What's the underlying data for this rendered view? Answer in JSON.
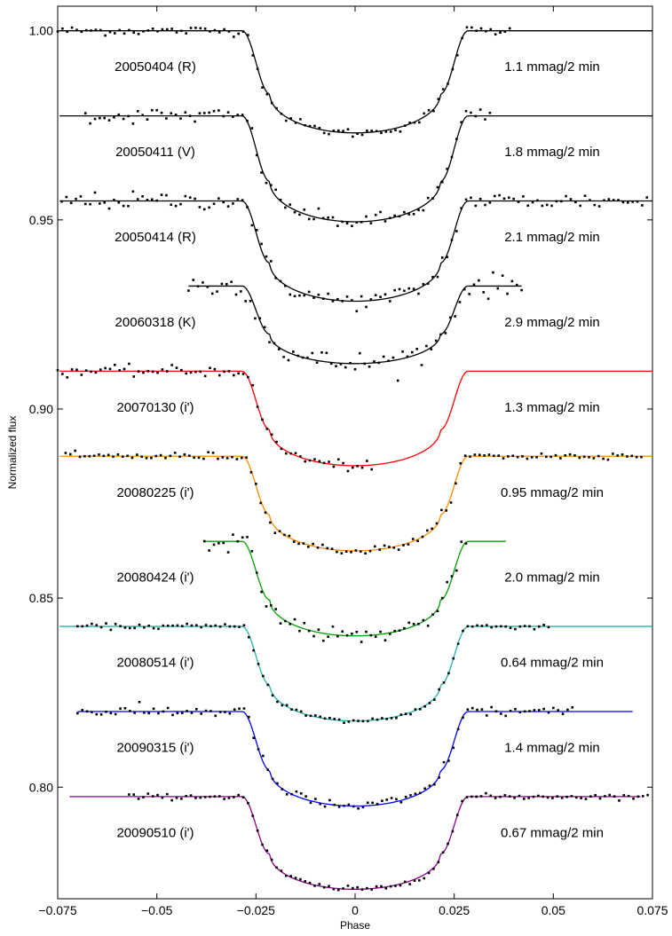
{
  "chart_data": {
    "type": "scatter",
    "title": "",
    "xlabel": "Phase",
    "ylabel": "Normalized flux",
    "xlim": [
      -0.075,
      0.075
    ],
    "ylim": [
      0.7705,
      1.0065
    ],
    "xticks": [
      -0.075,
      -0.05,
      -0.025,
      0,
      0.025,
      0.05,
      0.075
    ],
    "xtick_labels": [
      "−0.075",
      "−0.05",
      "−0.025",
      "0",
      "0.025",
      "0.05",
      "0.075"
    ],
    "yticks": [
      0.8,
      0.85,
      0.9,
      0.95,
      1.0
    ],
    "ytick_labels": [
      "0.80",
      "0.85",
      "0.90",
      "0.95",
      "1.00"
    ],
    "grid": false,
    "legend": "none",
    "series": [
      {
        "name": "20050404 (R)",
        "rms": "1.1 mmag/2 min",
        "baseline": 1.0,
        "depth": 0.027,
        "color": "#000000",
        "xmin": -0.0745,
        "xmax": 0.075,
        "data_xmin": -0.075,
        "data_xmax": 0.039
      },
      {
        "name": "20050411 (V)",
        "rms": "1.8 mmag/2 min",
        "baseline": 0.9775,
        "depth": 0.028,
        "color": "#000000",
        "xmin": -0.0745,
        "xmax": 0.075,
        "data_xmin": -0.068,
        "data_xmax": 0.034
      },
      {
        "name": "20050414 (R)",
        "rms": "2.1 mmag/2 min",
        "baseline": 0.955,
        "depth": 0.0265,
        "color": "#000000",
        "xmin": -0.0745,
        "xmax": 0.075,
        "data_xmin": -0.074,
        "data_xmax": 0.074
      },
      {
        "name": "20060318 (K)",
        "rms": "2.9 mmag/2 min",
        "baseline": 0.9325,
        "depth": 0.0205,
        "color": "#000000",
        "xmin": -0.042,
        "xmax": 0.042,
        "data_xmin": -0.042,
        "data_xmax": 0.042
      },
      {
        "name": "20070130 (i')",
        "rms": "1.3 mmag/2 min",
        "baseline": 0.91,
        "depth": 0.025,
        "color": "#ff0000",
        "xmin": -0.0745,
        "xmax": 0.075,
        "data_xmin": -0.075,
        "data_xmax": 0.005
      },
      {
        "name": "20080225 (i')",
        "rms": "0.95 mmag/2 min",
        "baseline": 0.8875,
        "depth": 0.025,
        "color": "#ff8c00",
        "xmin": -0.0745,
        "xmax": 0.075,
        "data_xmin": -0.073,
        "data_xmax": 0.073
      },
      {
        "name": "20080424 (i')",
        "rms": "2.0 mmag/2 min",
        "baseline": 0.865,
        "depth": 0.025,
        "color": "#00a000",
        "xmin": -0.038,
        "xmax": 0.038,
        "data_xmin": -0.038,
        "data_xmax": 0.029
      },
      {
        "name": "20080514 (i')",
        "rms": "0.64 mmag/2 min",
        "baseline": 0.8425,
        "depth": 0.025,
        "color": "#20b2aa",
        "xmin": -0.0745,
        "xmax": 0.075,
        "data_xmin": -0.07,
        "data_xmax": 0.049
      },
      {
        "name": "20090315 (i')",
        "rms": "1.4 mmag/2 min",
        "baseline": 0.82,
        "depth": 0.025,
        "color": "#0000ff",
        "xmin": -0.07,
        "xmax": 0.07,
        "data_xmin": -0.07,
        "data_xmax": 0.055
      },
      {
        "name": "20090510 (i')",
        "rms": "0.67 mmag/2 min",
        "baseline": 0.7975,
        "depth": 0.0245,
        "color": "#8b008b",
        "xmin": -0.072,
        "xmax": 0.072,
        "data_xmin": -0.057,
        "data_xmax": 0.074
      }
    ]
  }
}
